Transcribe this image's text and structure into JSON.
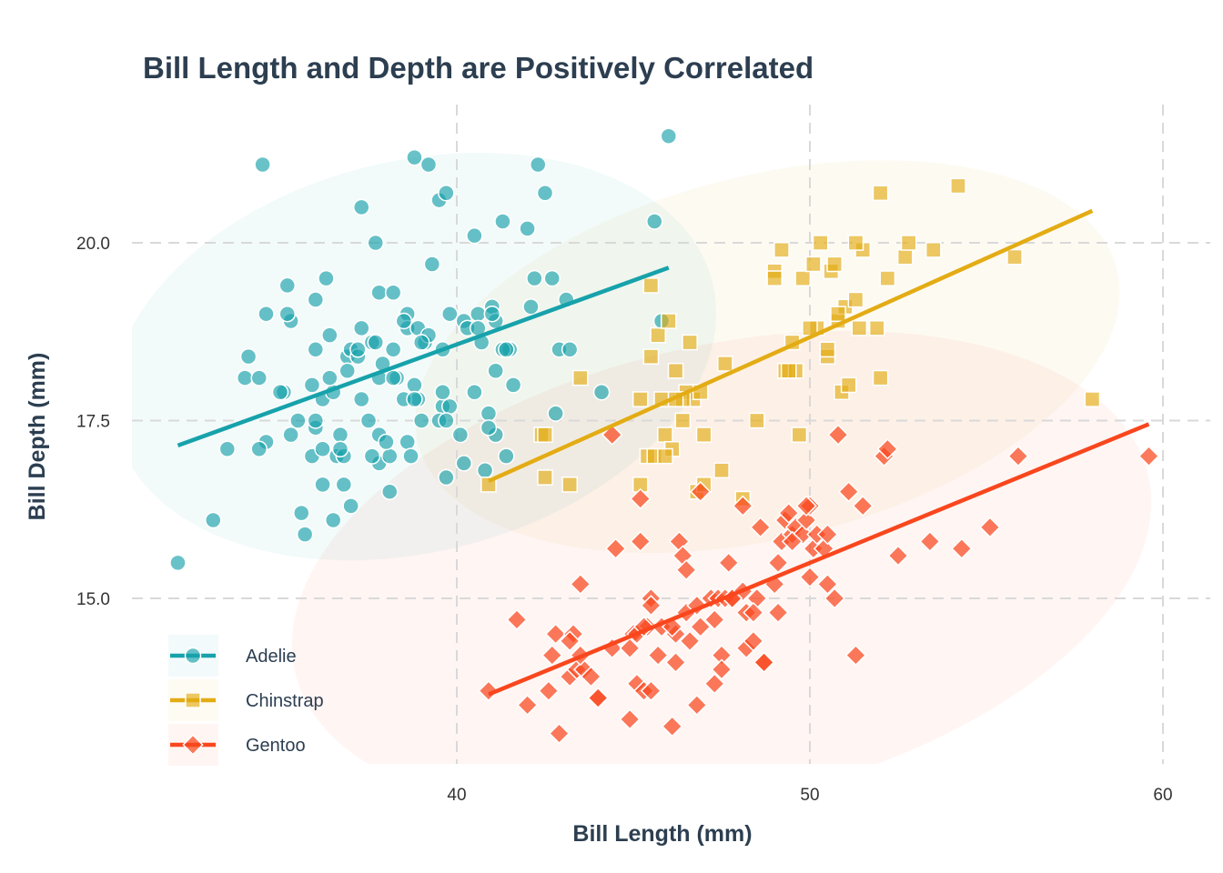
{
  "chart_data": {
    "type": "scatter",
    "title": "Bill Length and Depth are Positively Correlated",
    "xlabel": "Bill Length (mm)",
    "ylabel": "Bill Depth (mm)",
    "xlim": [
      30.8,
      61.0
    ],
    "ylim": [
      12.7,
      21.8
    ],
    "xticks": [
      40,
      50,
      60
    ],
    "xtick_labels": [
      "40",
      "50",
      "60"
    ],
    "yticks": [
      15.0,
      17.5,
      20.0
    ],
    "ytick_labels": [
      "15.0",
      "17.5",
      "20.0"
    ],
    "grid": true,
    "legend_position": "bottom-left",
    "series": [
      {
        "name": "Adelie",
        "color": "#17a2ab",
        "marker": "circle",
        "trend": {
          "x": [
            32.1,
            46.0
          ],
          "y": [
            17.15,
            19.65
          ]
        },
        "ellipse": {
          "cx": 38.8,
          "cy": 18.4,
          "rx": 8.7,
          "ry": 2.75,
          "angle_deg": -14
        },
        "x": [
          32.1,
          33.1,
          33.5,
          34.0,
          34.1,
          34.4,
          34.5,
          34.6,
          34.6,
          35.1,
          35.2,
          35.3,
          35.5,
          35.6,
          35.7,
          35.9,
          35.9,
          36.0,
          36.0,
          36.2,
          36.2,
          36.2,
          36.3,
          36.4,
          36.5,
          36.6,
          36.7,
          36.8,
          36.9,
          37.0,
          37.2,
          37.3,
          37.3,
          37.6,
          37.7,
          37.8,
          37.8,
          37.8,
          37.8,
          38.1,
          38.1,
          38.2,
          38.2,
          38.3,
          38.6,
          38.6,
          38.6,
          38.7,
          38.8,
          38.9,
          39.0,
          39.1,
          39.2,
          39.3,
          39.5,
          39.6,
          39.6,
          39.7,
          39.8,
          40.2,
          40.2,
          40.3,
          40.5,
          40.6,
          40.6,
          40.7,
          40.8,
          40.9,
          41.0,
          41.1,
          41.1,
          41.3,
          41.4,
          41.5,
          41.6,
          42.0,
          42.1,
          42.2,
          42.3,
          42.5,
          42.7,
          42.8,
          42.9,
          43.1,
          43.2,
          44.1,
          45.6,
          45.8,
          46.0,
          38.9,
          36.8,
          37.6,
          39.5,
          37.9,
          40.5,
          35.0,
          36.5,
          39.6,
          37.5,
          38.5,
          35.3,
          34.4,
          37.0,
          39.7,
          38.0,
          36.0,
          36.7,
          40.1,
          41.1,
          37.7,
          38.8,
          41.3,
          37.2,
          35.2,
          39.8,
          36.0,
          39.7,
          41.0,
          38.8,
          37.3,
          40.9,
          39.2,
          38.5,
          36.9,
          39.0,
          38.2,
          36.4,
          41.4
        ],
        "y": [
          15.5,
          16.1,
          17.1,
          18.1,
          18.4,
          18.1,
          21.1,
          19.0,
          17.2,
          17.9,
          19.4,
          18.9,
          17.5,
          16.2,
          15.9,
          17.0,
          18.0,
          19.2,
          18.5,
          16.6,
          17.1,
          17.8,
          19.5,
          18.7,
          16.1,
          17.0,
          17.3,
          16.6,
          18.4,
          18.5,
          18.4,
          17.8,
          20.5,
          18.6,
          20.0,
          17.3,
          18.1,
          16.9,
          19.3,
          16.5,
          17.0,
          19.3,
          18.5,
          18.1,
          17.2,
          19.0,
          18.8,
          17.0,
          21.2,
          18.8,
          17.5,
          18.6,
          21.1,
          19.7,
          20.6,
          17.7,
          18.5,
          20.7,
          17.7,
          16.9,
          18.9,
          18.8,
          20.1,
          19.0,
          18.8,
          18.6,
          16.8,
          17.6,
          19.1,
          18.9,
          18.2,
          20.3,
          17.0,
          18.5,
          18.0,
          20.2,
          19.1,
          19.5,
          21.1,
          20.7,
          19.5,
          17.6,
          18.5,
          19.2,
          18.5,
          17.9,
          20.3,
          18.9,
          21.5,
          17.8,
          17.0,
          17.0,
          17.5,
          18.3,
          17.9,
          17.9,
          17.9,
          17.9,
          17.5,
          17.8,
          17.3,
          17.1,
          16.3,
          16.7,
          17.2,
          17.4,
          17.1,
          17.3,
          17.3,
          18.6,
          18.0,
          18.5,
          18.5,
          19.0,
          19.0,
          17.5,
          17.5,
          19.0,
          17.8,
          18.8,
          17.4,
          18.7,
          18.9,
          18.2,
          18.6,
          18.1,
          18.1,
          18.5
        ]
      },
      {
        "name": "Chinstrap",
        "color": "#e3ac14",
        "marker": "square",
        "trend": {
          "x": [
            40.9,
            58.0
          ],
          "y": [
            16.65,
            20.45
          ]
        },
        "ellipse": {
          "cx": 48.8,
          "cy": 18.4,
          "rx": 10.2,
          "ry": 2.55,
          "angle_deg": -14
        },
        "x": [
          40.9,
          42.4,
          42.5,
          42.5,
          43.2,
          43.5,
          45.2,
          45.2,
          45.4,
          45.5,
          45.6,
          45.7,
          45.9,
          46.0,
          46.1,
          46.2,
          46.4,
          46.5,
          46.6,
          46.7,
          46.8,
          46.9,
          47.0,
          47.5,
          47.6,
          48.1,
          48.5,
          49.0,
          49.2,
          49.3,
          49.5,
          49.6,
          49.7,
          49.8,
          50.1,
          50.2,
          50.3,
          50.5,
          50.6,
          50.7,
          50.8,
          50.9,
          51.0,
          51.3,
          51.4,
          51.5,
          51.9,
          52.0,
          52.0,
          52.2,
          52.7,
          52.8,
          53.5,
          54.2,
          55.8,
          58.0,
          45.5,
          46.4,
          49.0,
          50.0,
          47.0,
          51.1,
          50.8,
          50.5,
          49.4,
          45.8,
          46.2,
          45.9,
          51.3
        ],
        "y": [
          16.6,
          17.3,
          16.7,
          17.3,
          16.6,
          18.1,
          17.8,
          16.6,
          17.0,
          19.4,
          17.0,
          18.7,
          17.3,
          18.9,
          17.1,
          18.2,
          17.5,
          17.9,
          18.6,
          17.8,
          16.5,
          17.9,
          17.3,
          16.8,
          18.3,
          16.4,
          17.5,
          19.6,
          19.9,
          18.2,
          18.6,
          18.2,
          17.3,
          19.5,
          19.7,
          18.8,
          20.0,
          18.4,
          19.6,
          19.7,
          18.9,
          17.9,
          19.1,
          19.2,
          18.8,
          19.9,
          18.8,
          18.1,
          20.7,
          19.5,
          19.8,
          20.0,
          19.9,
          20.8,
          19.8,
          17.8,
          18.4,
          17.8,
          19.5,
          18.8,
          16.6,
          18.0,
          19.0,
          18.5,
          18.2,
          17.8,
          17.8,
          17.0,
          20.0
        ]
      },
      {
        "name": "Gentoo",
        "color": "#f9461d",
        "marker": "diamond",
        "trend": {
          "x": [
            40.9,
            59.6
          ],
          "y": [
            13.65,
            17.45
          ]
        },
        "ellipse": {
          "cx": 47.5,
          "cy": 15.35,
          "rx": 12.4,
          "ry": 3.2,
          "angle_deg": -13
        },
        "x": [
          40.9,
          41.7,
          42.0,
          42.6,
          42.7,
          42.8,
          42.9,
          43.2,
          43.3,
          43.4,
          43.5,
          43.6,
          43.8,
          44.0,
          44.4,
          44.5,
          44.9,
          45.0,
          45.1,
          45.2,
          45.3,
          45.4,
          45.5,
          45.5,
          45.7,
          45.8,
          46.1,
          46.2,
          46.3,
          46.4,
          46.5,
          46.6,
          46.8,
          46.9,
          47.2,
          47.3,
          47.4,
          47.5,
          47.6,
          47.7,
          47.8,
          48.1,
          48.2,
          48.4,
          48.5,
          48.6,
          48.7,
          49.0,
          49.1,
          49.2,
          49.3,
          49.4,
          49.5,
          49.6,
          49.8,
          49.9,
          50.0,
          50.1,
          50.2,
          50.4,
          50.5,
          50.7,
          50.8,
          51.1,
          51.3,
          51.5,
          52.1,
          52.2,
          52.5,
          53.4,
          54.3,
          55.1,
          55.9,
          59.6,
          44.4,
          45.2,
          46.2,
          47.5,
          48.2,
          49.1,
          50.5,
          45.1,
          43.2,
          46.8,
          48.4,
          44.9,
          49.5,
          50.0,
          45.3,
          46.5,
          47.3,
          48.7,
          44.0,
          46.1,
          49.9,
          43.5,
          45.5,
          48.1,
          46.9,
          47.8
        ],
        "y": [
          13.7,
          14.7,
          13.5,
          13.7,
          14.2,
          14.5,
          13.1,
          13.9,
          14.5,
          14.0,
          15.2,
          14.0,
          13.9,
          13.6,
          14.3,
          15.7,
          13.3,
          14.5,
          13.8,
          15.8,
          13.7,
          14.6,
          13.7,
          15.0,
          14.2,
          14.6,
          13.2,
          14.1,
          15.8,
          15.6,
          14.8,
          14.4,
          13.5,
          14.6,
          15.0,
          13.8,
          15.0,
          14.2,
          15.0,
          15.5,
          15.0,
          15.1,
          14.3,
          14.4,
          15.0,
          16.0,
          14.1,
          15.2,
          14.8,
          15.8,
          16.1,
          16.2,
          15.9,
          16.0,
          15.9,
          16.1,
          16.3,
          15.7,
          15.9,
          15.7,
          15.9,
          15.0,
          17.3,
          16.5,
          14.2,
          16.3,
          17.0,
          17.1,
          15.6,
          15.8,
          15.7,
          16.0,
          17.0,
          17.0,
          17.3,
          16.4,
          14.5,
          14.0,
          14.8,
          15.5,
          15.2,
          14.5,
          14.4,
          14.9,
          14.8,
          14.3,
          15.8,
          15.3,
          14.6,
          15.4,
          14.7,
          14.1,
          13.6,
          14.6,
          16.3,
          14.2,
          14.9,
          16.3,
          16.5,
          15.0
        ]
      }
    ]
  }
}
